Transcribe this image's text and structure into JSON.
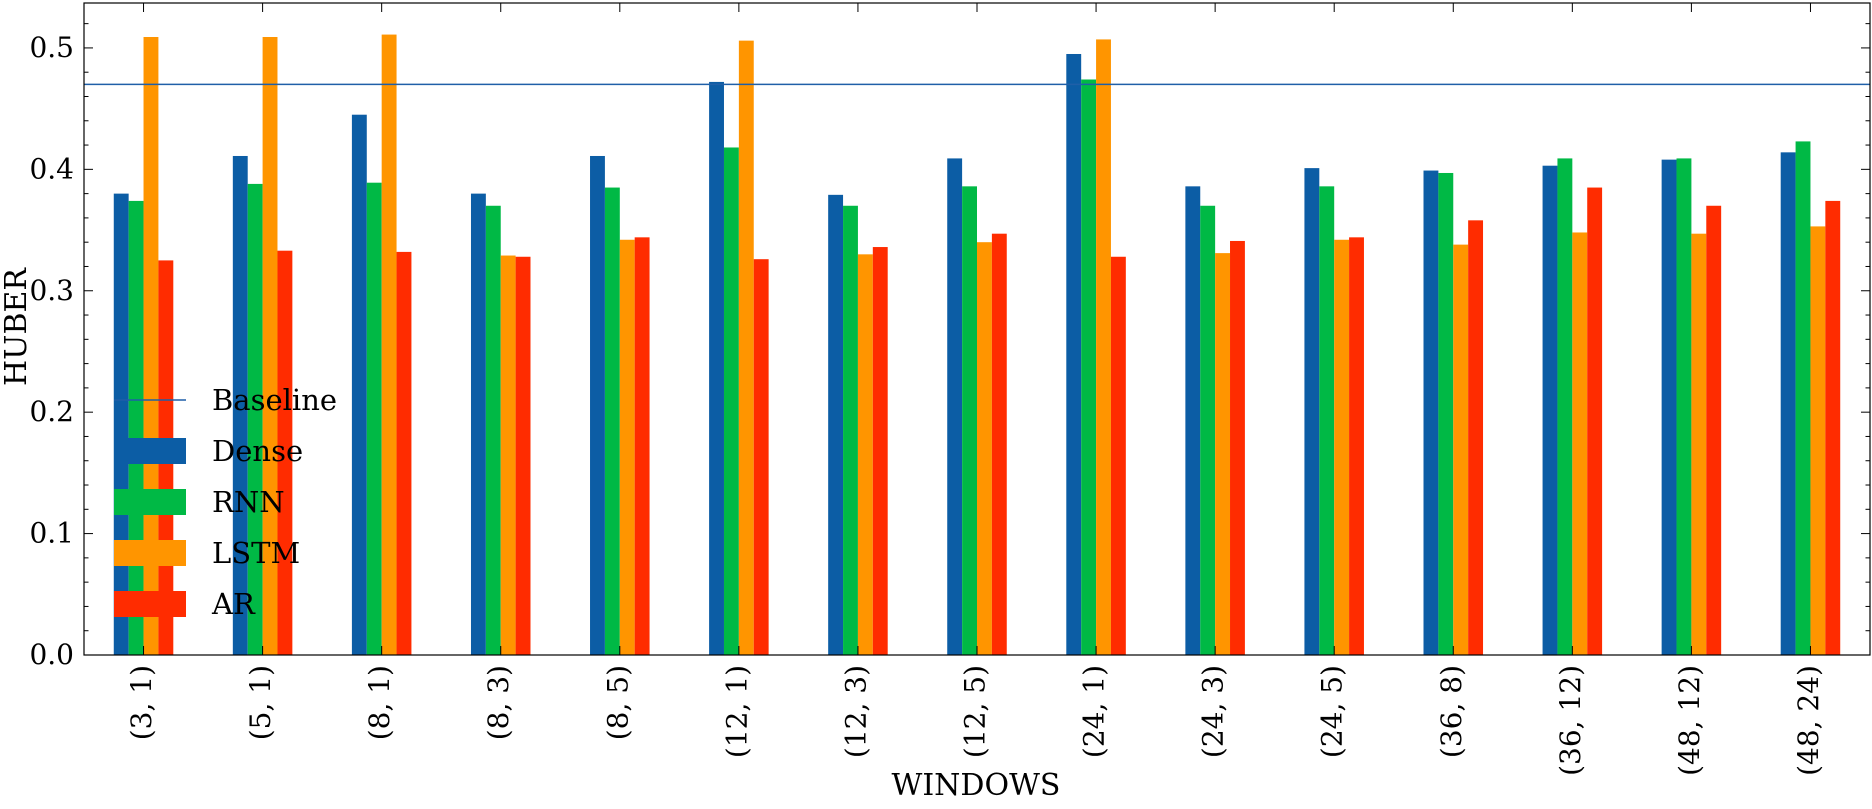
{
  "chart_data": {
    "type": "bar",
    "xlabel": "WINDOWS",
    "ylabel": "HUBER",
    "ylim": [
      0.0,
      0.537
    ],
    "yticks": [
      0.0,
      0.1,
      0.2,
      0.3,
      0.4,
      0.5
    ],
    "ytick_labels": [
      "0.0",
      "0.1",
      "0.2",
      "0.3",
      "0.4",
      "0.5"
    ],
    "grid": false,
    "legend_position": "left-center",
    "categories": [
      "(3, 1)",
      "(5, 1)",
      "(8, 1)",
      "(8, 3)",
      "(8, 5)",
      "(12, 1)",
      "(12, 3)",
      "(12, 5)",
      "(24, 1)",
      "(24, 3)",
      "(24, 5)",
      "(36, 8)",
      "(36, 12)",
      "(48, 12)",
      "(48, 24)"
    ],
    "baseline": {
      "name": "Baseline",
      "value": 0.47,
      "color": "#1f5fa8"
    },
    "series": [
      {
        "name": "Dense",
        "color": "#0c5da5",
        "values": [
          0.38,
          0.411,
          0.445,
          0.38,
          0.411,
          0.472,
          0.379,
          0.409,
          0.495,
          0.386,
          0.401,
          0.399,
          0.403,
          0.408,
          0.414
        ]
      },
      {
        "name": "RNN",
        "color": "#00b945",
        "values": [
          0.374,
          0.388,
          0.389,
          0.37,
          0.385,
          0.418,
          0.37,
          0.386,
          0.474,
          0.37,
          0.386,
          0.397,
          0.409,
          0.409,
          0.423
        ]
      },
      {
        "name": "LSTM",
        "color": "#ff9500",
        "values": [
          0.509,
          0.509,
          0.511,
          0.329,
          0.342,
          0.506,
          0.33,
          0.34,
          0.507,
          0.331,
          0.342,
          0.338,
          0.348,
          0.347,
          0.353
        ]
      },
      {
        "name": "AR",
        "color": "#ff2c00",
        "values": [
          0.325,
          0.333,
          0.332,
          0.328,
          0.344,
          0.326,
          0.336,
          0.347,
          0.328,
          0.341,
          0.344,
          0.358,
          0.385,
          0.37,
          0.374
        ]
      }
    ]
  }
}
